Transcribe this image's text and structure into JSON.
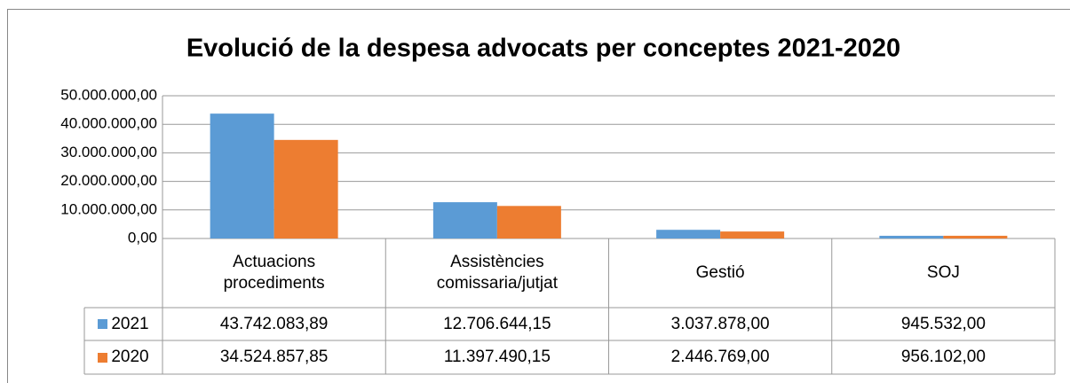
{
  "chart_data": {
    "type": "bar",
    "title": "Evolució de la despesa advocats per conceptes 2021-2020",
    "categories": [
      "Actuacions procediments",
      "Assistències comissaria/jutjat",
      "Gestió",
      "SOJ"
    ],
    "series": [
      {
        "name": "2021",
        "color": "#5b9bd5",
        "values": [
          43742083.89,
          12706644.15,
          3037878,
          945532
        ],
        "value_labels": [
          "43.742.083,89",
          "12.706.644,15",
          "3.037.878,00",
          "945.532,00"
        ]
      },
      {
        "name": "2020",
        "color": "#ed7d31",
        "values": [
          34524857.85,
          11397490.15,
          2446769,
          956102
        ],
        "value_labels": [
          "34.524.857,85",
          "11.397.490,15",
          "2.446.769,00",
          "956.102,00"
        ]
      }
    ],
    "ylim": [
      0,
      50000000
    ],
    "yticks": [
      {
        "value": 0,
        "label": "0,00"
      },
      {
        "value": 10000000,
        "label": "10.000.000,00"
      },
      {
        "value": 20000000,
        "label": "20.000.000,00"
      },
      {
        "value": 30000000,
        "label": "30.000.000,00"
      },
      {
        "value": 40000000,
        "label": "40.000.000,00"
      },
      {
        "value": 50000000,
        "label": "50.000.000,00"
      }
    ],
    "grid": true
  }
}
